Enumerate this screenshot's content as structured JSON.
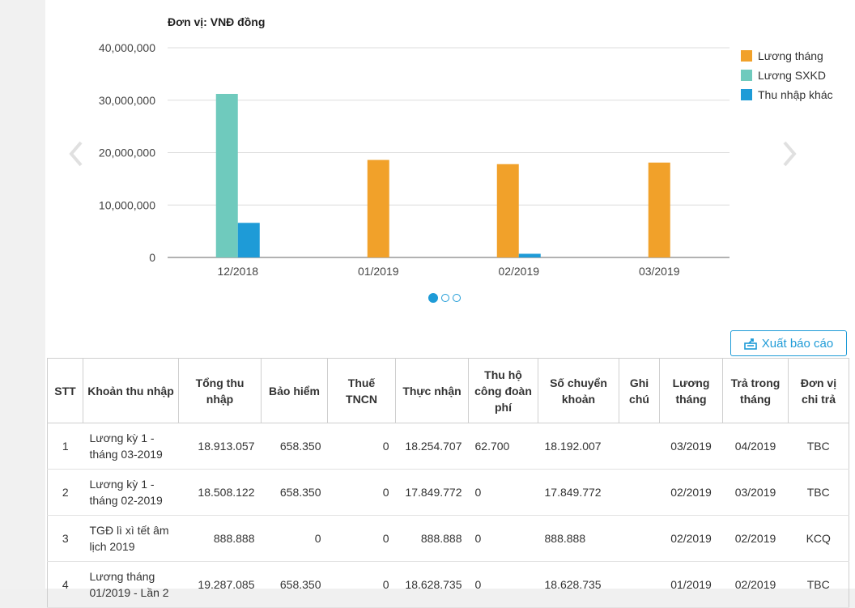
{
  "chart": {
    "unit_label": "Đơn vị: VNĐ đồng"
  },
  "chart_data": {
    "type": "bar",
    "title": "Đơn vị: VNĐ đồng",
    "categories": [
      "12/2018",
      "01/2019",
      "02/2019",
      "03/2019"
    ],
    "series": [
      {
        "name": "Lương tháng",
        "color": "#f1a12a",
        "values": [
          0,
          18600000,
          17800000,
          18100000
        ]
      },
      {
        "name": "Lương SXKD",
        "color": "#6fcabd",
        "values": [
          31200000,
          0,
          0,
          0
        ]
      },
      {
        "name": "Thu nhập khác",
        "color": "#1e9bd7",
        "values": [
          6600000,
          0,
          700000,
          0
        ]
      }
    ],
    "ylim": [
      0,
      40000000
    ],
    "yticks": [
      "0",
      "10,000,000",
      "20,000,000",
      "30,000,000",
      "40,000,000"
    ],
    "grid": true,
    "legend_position": "right"
  },
  "carousel": {
    "pages": 3,
    "active": 0
  },
  "toolbar": {
    "export_label": "Xuất báo cáo"
  },
  "table": {
    "headers": [
      "STT",
      "Khoản thu nhập",
      "Tổng thu nhập",
      "Bảo hiểm",
      "Thuế TNCN",
      "Thực nhận",
      "Thu hộ công đoàn phí",
      "Số chuyển khoản",
      "Ghi chú",
      "Lương tháng",
      "Trả trong tháng",
      "Đơn vị chi trả"
    ],
    "rows": [
      [
        "1",
        "Lương kỳ 1 - tháng 03-2019",
        "18.913.057",
        "658.350",
        "0",
        "18.254.707",
        "62.700",
        "18.192.007",
        "",
        "03/2019",
        "04/2019",
        "TBC"
      ],
      [
        "2",
        "Lương kỳ 1 - tháng 02-2019",
        "18.508.122",
        "658.350",
        "0",
        "17.849.772",
        "0",
        "17.849.772",
        "",
        "02/2019",
        "03/2019",
        "TBC"
      ],
      [
        "3",
        "TGĐ lì xì tết âm lịch 2019",
        "888.888",
        "0",
        "0",
        "888.888",
        "0",
        "888.888",
        "",
        "02/2019",
        "02/2019",
        "KCQ"
      ],
      [
        "4",
        "Lương tháng 01/2019 - Lần 2",
        "19.287.085",
        "658.350",
        "0",
        "18.628.735",
        "0",
        "18.628.735",
        "",
        "01/2019",
        "02/2019",
        "TBC"
      ]
    ]
  }
}
